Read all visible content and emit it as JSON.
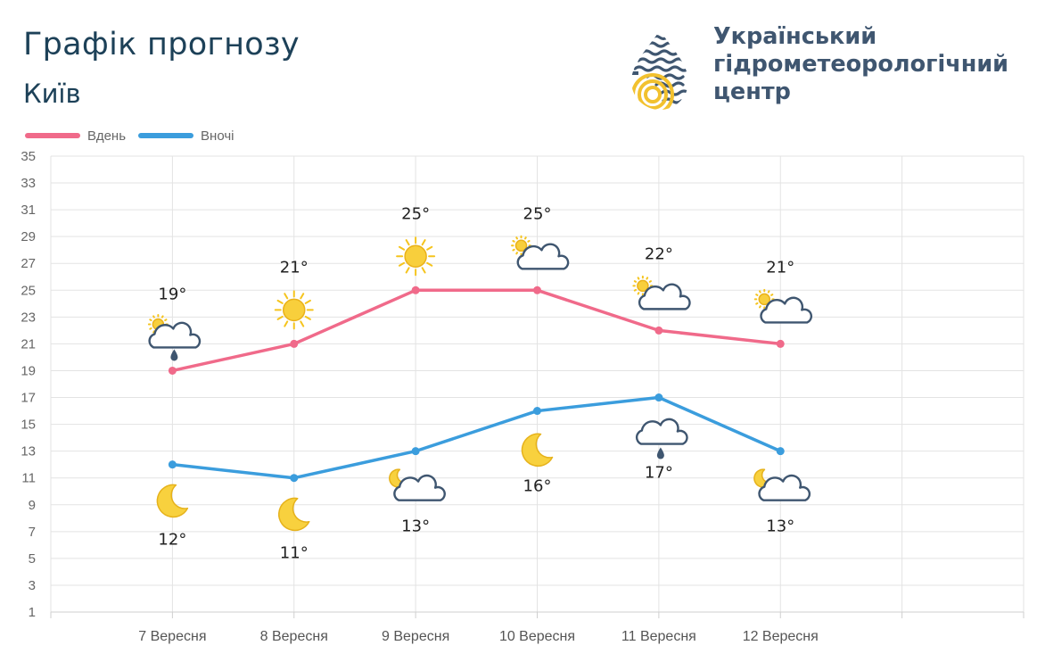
{
  "header": {
    "title": "Графік прогнозу",
    "city": "Київ"
  },
  "org": {
    "line1": "Український",
    "line2": "гідрометеорологічний",
    "line3": "центр"
  },
  "colors": {
    "day": "#f06a8a",
    "night": "#3b9ddd",
    "title": "#1d4158",
    "org": "#3f5670",
    "grid": "#e3e3e3"
  },
  "chart_data": {
    "type": "line",
    "categories": [
      "7 Вересня",
      "8 Вересня",
      "9 Вересня",
      "10 Вересня",
      "11 Вересня",
      "12 Вересня"
    ],
    "series": [
      {
        "name": "Вдень",
        "values": [
          19,
          21,
          25,
          25,
          22,
          21
        ],
        "labels": [
          "19°",
          "21°",
          "25°",
          "25°",
          "22°",
          "21°"
        ],
        "icons": [
          "partly-cloudy-rain-icon",
          "sun-icon",
          "sun-icon",
          "partly-cloudy-icon",
          "partly-cloudy-icon",
          "partly-cloudy-icon"
        ]
      },
      {
        "name": "Вночі",
        "values": [
          12,
          11,
          13,
          16,
          17,
          13
        ],
        "labels": [
          "12°",
          "11°",
          "13°",
          "16°",
          "17°",
          "13°"
        ],
        "icons": [
          "moon-icon",
          "moon-icon",
          "moon-cloudy-icon",
          "moon-icon",
          "cloud-rain-icon",
          "moon-cloudy-icon"
        ]
      }
    ],
    "yticks": [
      "35",
      "33",
      "31",
      "29",
      "27",
      "25",
      "23",
      "21",
      "19",
      "17",
      "15",
      "13",
      "11",
      "9",
      "7",
      "5",
      "3",
      "1"
    ],
    "ylim": [
      1,
      35
    ],
    "grid": true,
    "legend_position": "top-left"
  }
}
